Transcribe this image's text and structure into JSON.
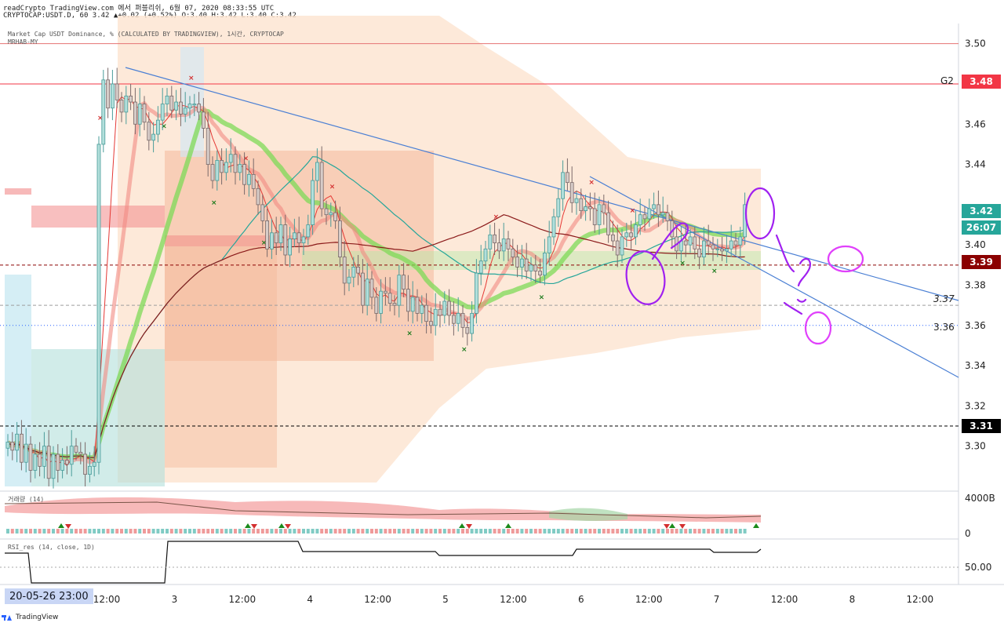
{
  "header": {
    "line1": "readCrypto TradingView.com 에서 퍼블리쉬, 6월 07, 2020 08:33:55 UTC",
    "line2": "CRYPTOCAP:USDT.D, 60 3.42 ▲+0.02 (+0.52%) O:3.40 H:3.42 L:3.40 C:3.42"
  },
  "legend": {
    "series_title": "Market Cap USDT Dominance, % (CALCULATED BY TRADINGVIEW), 1시간, CRYPTOCAP",
    "indicator": "MRHAB-MY",
    "volume_label": "거래량 (14)",
    "rsi_label": "RSI_res (14, close, 1D)"
  },
  "price_axis": {
    "ticks": [
      "3.50",
      "3.46",
      "3.44",
      "3.40",
      "3.38",
      "3.36",
      "3.34",
      "3.32",
      "3.30"
    ],
    "badges": {
      "current": "3.42",
      "countdown": "26:07",
      "g2_label": "G2",
      "g2_value": "3.48",
      "level_339": "3.39",
      "level_331": "3.31",
      "level_337": "3.37",
      "level_336": "3.36"
    },
    "colors": {
      "current": "#26a69a",
      "g2": "#f23645",
      "level_339": "#8b0000",
      "level_331": "#000000"
    }
  },
  "volume_axis": {
    "ticks": [
      "4000B",
      "0"
    ]
  },
  "rsi_axis": {
    "ticks": [
      "50.00"
    ]
  },
  "time_axis": {
    "labels": [
      "12:00",
      "3",
      "12:00",
      "4",
      "12:00",
      "5",
      "12:00",
      "6",
      "12:00",
      "7",
      "12:00",
      "8",
      "12:00"
    ],
    "cursor_label": "20-05-26  23:00"
  },
  "footer": {
    "brand": "TradingView"
  },
  "chart_data": {
    "type": "candlestick",
    "symbol": "CRYPTOCAP:USDT.D",
    "timeframe": "60",
    "ylim": [
      3.28,
      3.51
    ],
    "hlines": [
      {
        "value": 3.5,
        "color": "#e57373",
        "style": "solid"
      },
      {
        "value": 3.48,
        "color": "#f23645",
        "style": "solid"
      },
      {
        "value": 3.39,
        "color": "#8b0000",
        "style": "dashed"
      },
      {
        "value": 3.37,
        "color": "#9e9e9e",
        "style": "dashed"
      },
      {
        "value": 3.36,
        "color": "#2962ff",
        "style": "dotted"
      },
      {
        "value": 3.31,
        "color": "#000000",
        "style": "dashed"
      }
    ],
    "closes": [
      3.302,
      3.298,
      3.306,
      3.292,
      3.301,
      3.288,
      3.296,
      3.29,
      3.3,
      3.284,
      3.296,
      3.288,
      3.293,
      3.291,
      3.3,
      3.297,
      3.296,
      3.286,
      3.29,
      3.292,
      3.45,
      3.482,
      3.468,
      3.48,
      3.472,
      3.466,
      3.474,
      3.471,
      3.46,
      3.47,
      3.461,
      3.452,
      3.455,
      3.462,
      3.47,
      3.474,
      3.467,
      3.471,
      3.465,
      3.468,
      3.47,
      3.47,
      3.466,
      3.458,
      3.44,
      3.432,
      3.442,
      3.436,
      3.441,
      3.445,
      3.436,
      3.44,
      3.43,
      3.435,
      3.428,
      3.42,
      3.412,
      3.398,
      3.406,
      3.401,
      3.41,
      3.395,
      3.403,
      3.406,
      3.401,
      3.404,
      3.41,
      3.432,
      3.441,
      3.418,
      3.415,
      3.416,
      3.412,
      3.394,
      3.381,
      3.384,
      3.389,
      3.386,
      3.37,
      3.383,
      3.374,
      3.366,
      3.377,
      3.376,
      3.371,
      3.37,
      3.385,
      3.378,
      3.367,
      3.374,
      3.366,
      3.37,
      3.362,
      3.36,
      3.368,
      3.365,
      3.372,
      3.365,
      3.361,
      3.366,
      3.359,
      3.356,
      3.366,
      3.386,
      3.392,
      3.398,
      3.405,
      3.401,
      3.397,
      3.403,
      3.398,
      3.394,
      3.389,
      3.393,
      3.387,
      3.39,
      3.387,
      3.385,
      3.396,
      3.404,
      3.414,
      3.423,
      3.436,
      3.431,
      3.421,
      3.423,
      3.417,
      3.419,
      3.418,
      3.41,
      3.42,
      3.416,
      3.405,
      3.402,
      3.395,
      3.404,
      3.406,
      3.404,
      3.41,
      3.415,
      3.413,
      3.418,
      3.42,
      3.415,
      3.416,
      3.412,
      3.404,
      3.397,
      3.402,
      3.4,
      3.404,
      3.398,
      3.394,
      3.402,
      3.4,
      3.398,
      3.398,
      3.397,
      3.398,
      3.402,
      3.4,
      3.404,
      3.42
    ]
  }
}
